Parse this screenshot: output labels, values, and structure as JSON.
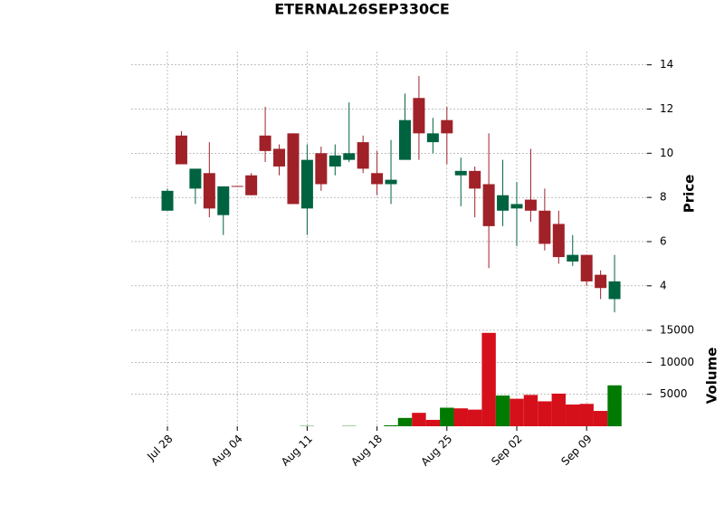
{
  "chart_data": {
    "type": "candlestick",
    "title": "ETERNAL26SEP330CE",
    "categories": [
      "Jul 28",
      null,
      null,
      null,
      null,
      "Aug 04",
      null,
      null,
      null,
      null,
      "Aug 11",
      null,
      null,
      null,
      null,
      "Aug 18",
      null,
      null,
      null,
      null,
      "Aug 25",
      null,
      null,
      null,
      null,
      "Sep 02",
      null,
      null,
      null,
      null,
      "Sep 09",
      null,
      null
    ],
    "open": [
      7.4,
      10.8,
      8.4,
      9.1,
      7.2,
      8.52,
      9.0,
      10.8,
      10.2,
      10.9,
      7.5,
      10.0,
      9.4,
      9.7,
      10.5,
      9.1,
      8.6,
      9.7,
      12.5,
      10.5,
      11.5,
      9.0,
      9.2,
      8.6,
      7.4,
      7.5,
      7.9,
      7.4,
      6.8,
      5.1,
      5.4,
      4.5,
      3.4
    ],
    "high": [
      8.4,
      11.0,
      9.3,
      10.5,
      8.5,
      8.52,
      9.1,
      12.1,
      10.4,
      10.9,
      10.4,
      10.3,
      10.4,
      12.3,
      10.8,
      10.1,
      10.6,
      12.7,
      13.5,
      11.6,
      12.1,
      9.8,
      9.4,
      10.9,
      9.7,
      8.7,
      10.2,
      8.4,
      7.4,
      6.3,
      5.4,
      4.7,
      5.4
    ],
    "low": [
      7.4,
      9.5,
      7.7,
      7.1,
      6.3,
      8.5,
      8.1,
      9.6,
      9.0,
      7.7,
      6.3,
      8.3,
      9.0,
      9.6,
      9.1,
      8.1,
      7.7,
      9.7,
      9.7,
      10.0,
      9.5,
      7.6,
      7.1,
      4.8,
      6.7,
      5.8,
      6.9,
      5.6,
      5.0,
      4.9,
      4.0,
      3.4,
      2.8
    ],
    "close": [
      8.3,
      9.5,
      9.3,
      7.5,
      8.5,
      8.5,
      8.1,
      10.1,
      9.4,
      7.7,
      9.7,
      8.6,
      9.9,
      10.0,
      9.3,
      8.6,
      8.8,
      11.5,
      10.9,
      10.9,
      10.9,
      9.2,
      8.4,
      6.7,
      8.1,
      7.7,
      7.4,
      5.9,
      5.3,
      5.4,
      4.2,
      3.9,
      4.2
    ],
    "volume": [
      0,
      0,
      0,
      0,
      0,
      0,
      0,
      0,
      0,
      0,
      50,
      0,
      0,
      50,
      0,
      0,
      150,
      1300,
      2100,
      1000,
      2900,
      2800,
      2600,
      14600,
      4800,
      4300,
      4900,
      3900,
      5100,
      3400,
      3500,
      2400,
      6400
    ],
    "volume_colors": [
      "#007a00",
      "#d5101b",
      "#007a00",
      "#d5101b",
      "#007a00",
      "#d5101b",
      "#d5101b",
      "#d5101b",
      "#d5101b",
      "#d5101b",
      "#007a00",
      "#d5101b",
      "#007a00",
      "#007a00",
      "#d5101b",
      "#d5101b",
      "#007a00",
      "#007a00",
      "#d5101b",
      "#d5101b",
      "#007a00",
      "#d5101b",
      "#d5101b",
      "#d5101b",
      "#007a00",
      "#d5101b",
      "#d5101b",
      "#d5101b",
      "#d5101b",
      "#d5101b",
      "#d5101b",
      "#d5101b",
      "#007a00"
    ],
    "up_color": "#006340",
    "down_color": "#a02128",
    "ylabel": "Price",
    "ylim": [
      2.6,
      14.6
    ],
    "yticks": [
      4,
      6,
      8,
      10,
      12,
      14
    ],
    "volume_ylabel": "Volume",
    "volume_ylim": [
      0,
      16270
    ],
    "volume_yticks": [
      5000,
      10000,
      15000
    ],
    "grid": true
  }
}
